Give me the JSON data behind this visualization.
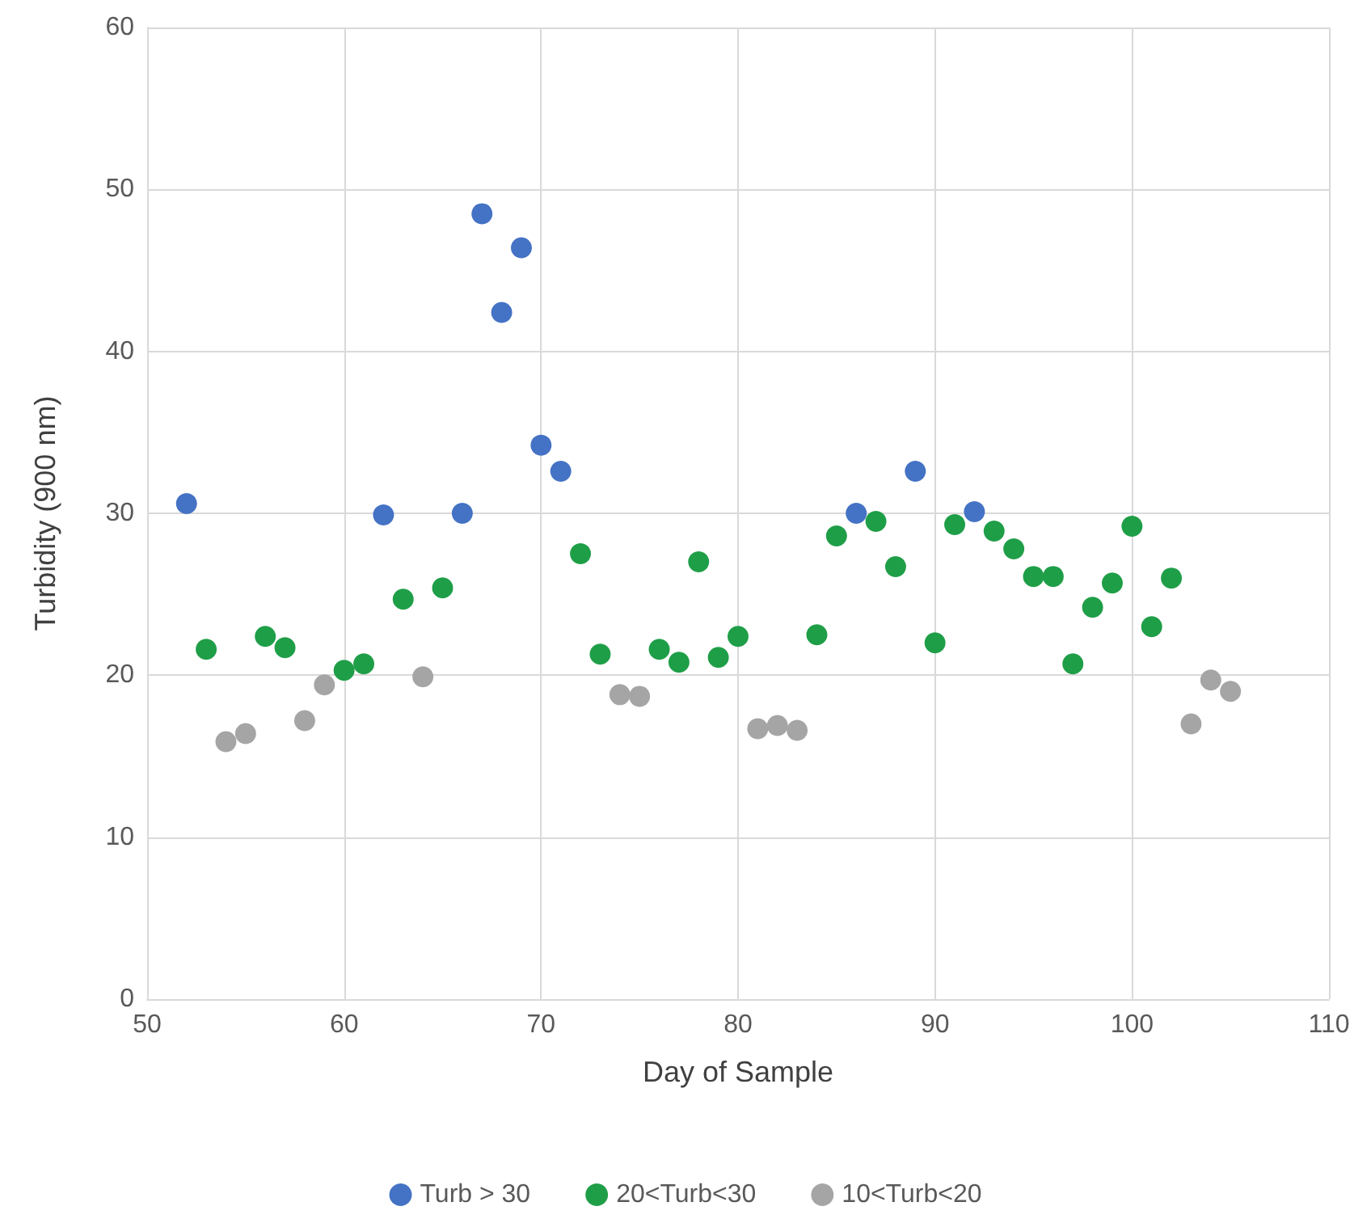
{
  "chart_data": {
    "type": "scatter",
    "xlabel": "Day of Sample",
    "ylabel": "Turbidity (900 nm)",
    "xlim": [
      50,
      110
    ],
    "xticks": [
      50,
      60,
      70,
      80,
      90,
      100,
      110
    ],
    "ylim": [
      0,
      60
    ],
    "yticks": [
      0,
      10,
      20,
      30,
      40,
      50,
      60
    ],
    "grid": true,
    "legend": "bottom",
    "marker": "circle",
    "series": [
      {
        "name": "Turb > 30",
        "color": "#4472c4",
        "x": [
          52,
          62,
          66,
          67,
          68,
          69,
          70,
          71,
          86,
          89,
          92
        ],
        "values": [
          30.6,
          29.9,
          30.0,
          48.5,
          42.4,
          46.4,
          34.2,
          32.6,
          30.0,
          32.6,
          30.1
        ]
      },
      {
        "name": "20<Turb<30",
        "color": "#1f9e48",
        "x": [
          53,
          56,
          57,
          60,
          61,
          63,
          65,
          72,
          73,
          76,
          77,
          78,
          79,
          80,
          84,
          85,
          87,
          88,
          90,
          91,
          93,
          94,
          95,
          96,
          97,
          98,
          99,
          100,
          101,
          102
        ],
        "values": [
          21.6,
          22.4,
          21.7,
          20.3,
          20.7,
          24.7,
          25.4,
          27.5,
          21.3,
          21.6,
          20.8,
          27.0,
          21.1,
          22.4,
          22.5,
          28.6,
          29.5,
          26.7,
          22.0,
          29.3,
          28.9,
          27.8,
          26.1,
          26.1,
          20.7,
          24.2,
          25.7,
          29.2,
          23.0,
          26.0
        ]
      },
      {
        "name": "10<Turb<20",
        "color": "#a5a5a5",
        "x": [
          54,
          55,
          58,
          59,
          64,
          74,
          75,
          81,
          82,
          83,
          103,
          104,
          105
        ],
        "values": [
          15.9,
          16.4,
          17.2,
          19.4,
          19.9,
          18.8,
          18.7,
          16.7,
          16.9,
          16.6,
          17.0,
          19.7,
          19.0
        ]
      }
    ]
  }
}
